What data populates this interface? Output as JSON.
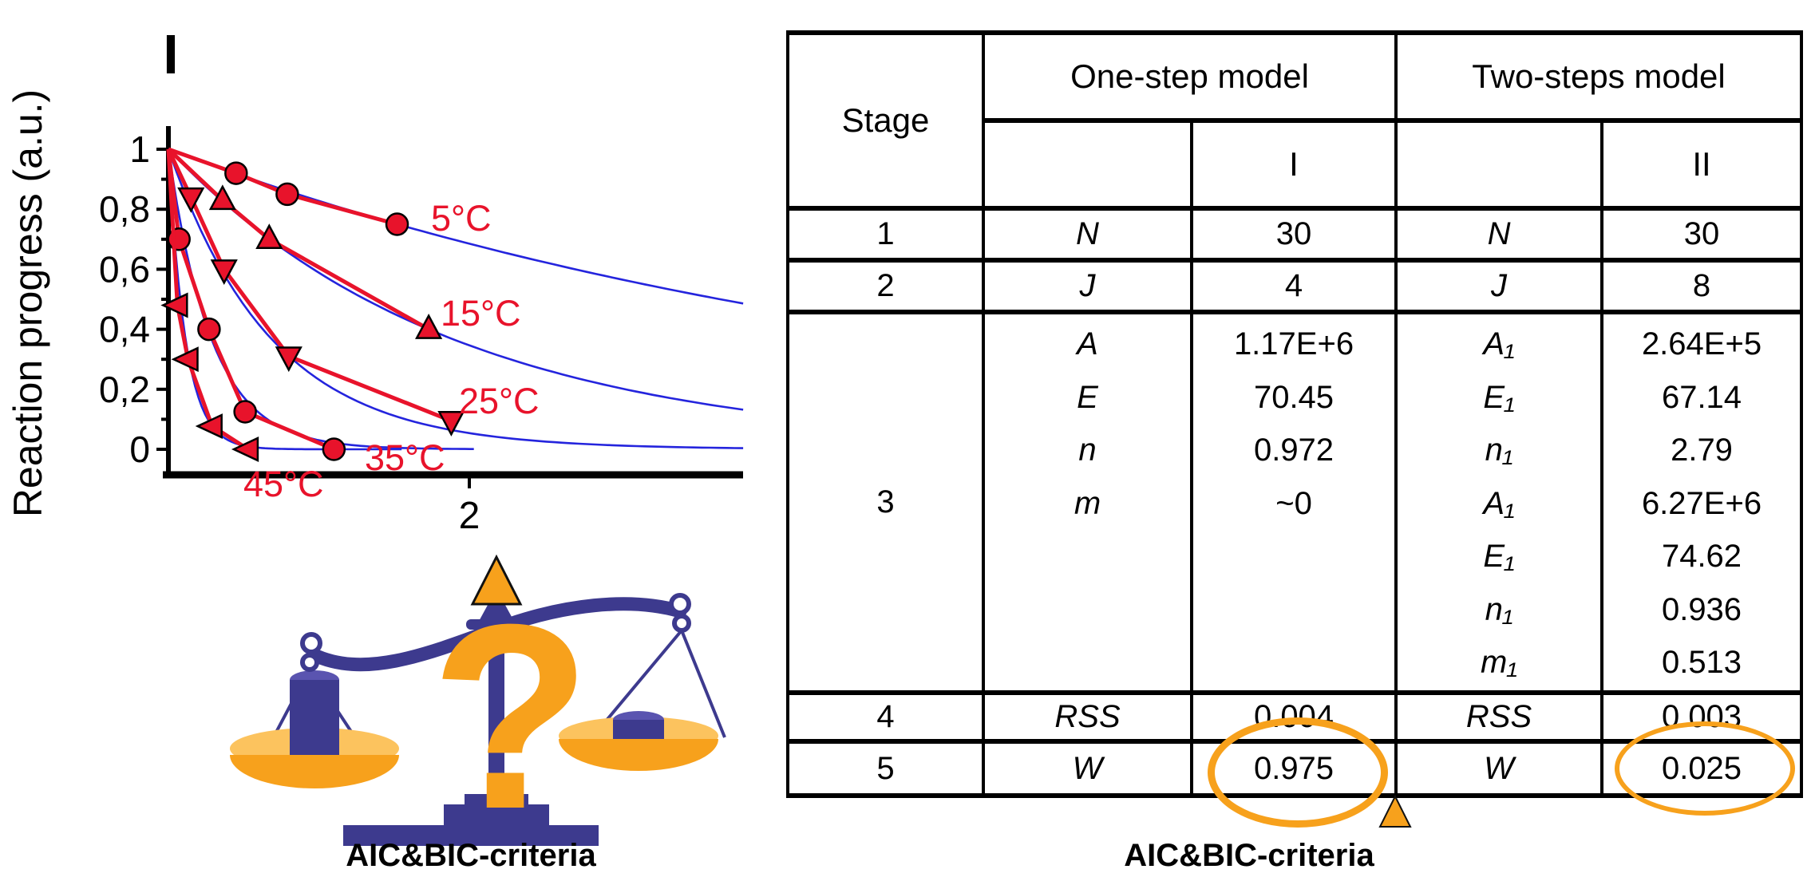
{
  "palette": {
    "red": "#e8132b",
    "blue": "#2424dd",
    "cyan": "#29abe2",
    "green": "#3ab54a",
    "magenta": "#ec008c",
    "gray": "#b3b3b3",
    "orange": "#f7a11c",
    "orange_light": "#fcc35e",
    "navy": "#3d3a8e",
    "navy_light": "#5a54b0",
    "black": "#000000"
  },
  "chart_data": {
    "type": "line",
    "title": "I",
    "ylabel": "Reaction progress (a.u.)",
    "xlabel": "",
    "ylim": [
      0,
      1
    ],
    "xlim": [
      0,
      3.82
    ],
    "grid": false,
    "legend_position": "inline-labels",
    "yticks": [
      1,
      0.8,
      0.6,
      0.4,
      0.2,
      0
    ],
    "ytick_labels": [
      "1",
      "0,8",
      "0,6",
      "0,4",
      "0,2",
      "0"
    ],
    "ytick_minor": [
      0.9,
      0.7,
      0.5,
      0.3,
      0.1
    ],
    "xticks": [
      2
    ],
    "xtick_labels": [
      "2"
    ],
    "series": [
      {
        "name": "5°C",
        "marker": "circle",
        "points": [
          [
            0,
            1
          ],
          [
            0.45,
            0.92
          ],
          [
            0.79,
            0.85
          ],
          [
            1.52,
            0.75
          ]
        ],
        "model": {
          "k": 0.189,
          "x_end": 3.82
        }
      },
      {
        "name": "15°C",
        "marker": "triangle-up",
        "points": [
          [
            0,
            1
          ],
          [
            0.36,
            0.83
          ],
          [
            0.67,
            0.7
          ],
          [
            1.73,
            0.4
          ]
        ],
        "model": {
          "k": 0.53,
          "x_end": 3.82
        }
      },
      {
        "name": "25°C",
        "marker": "triangle-down",
        "points": [
          [
            0,
            1
          ],
          [
            0.15,
            0.84
          ],
          [
            0.37,
            0.6
          ],
          [
            0.8,
            0.31
          ],
          [
            1.88,
            0.095
          ]
        ],
        "model": {
          "k": 1.46,
          "x_end": 3.82
        }
      },
      {
        "name": "35°C",
        "marker": "circle",
        "points": [
          [
            0,
            1
          ],
          [
            0.07,
            0.7
          ],
          [
            0.27,
            0.4
          ],
          [
            0.51,
            0.125
          ],
          [
            1.1,
            0.0
          ]
        ],
        "model": {
          "k": 3.5,
          "x_end": 2.03
        }
      },
      {
        "name": "45°C",
        "marker": "triangle-left",
        "points": [
          [
            0,
            1
          ],
          [
            0.06,
            0.48
          ],
          [
            0.13,
            0.3
          ],
          [
            0.29,
            0.077
          ],
          [
            0.53,
            0.0
          ]
        ],
        "model": {
          "k": 8.8,
          "x_end": 1.55
        }
      }
    ],
    "data_color": "#e8132b",
    "curve_color": "#2424dd"
  },
  "table": {
    "header": {
      "stage": "Stage",
      "one_step": "One-step model",
      "two_steps": "Two-steps model",
      "sub_one": "",
      "sub_I": "I",
      "sub_two": "",
      "sub_II": "II"
    },
    "row1": {
      "stage": "1",
      "param": "N",
      "value": "30",
      "param2": "N",
      "value2": "30"
    },
    "row2": {
      "stage": "2",
      "param": "J",
      "value": "4",
      "param2": "J",
      "value2": "8"
    },
    "row3": {
      "stage": "3",
      "params": [
        "A",
        "E",
        "n",
        "m"
      ],
      "values": [
        "1.17E+6",
        "70.45",
        "0.972",
        "~0"
      ],
      "params2": [
        "A₁",
        "E₁",
        "n₁",
        "A₁",
        "E₁",
        "n₁",
        "m₁"
      ],
      "values2": [
        "2.64E+5",
        "67.14",
        "2.79",
        "6.27E+6",
        "74.62",
        "0.936",
        "0.513"
      ]
    },
    "row4": {
      "stage": "4",
      "param": "RSS",
      "value": "0.004",
      "param2": "RSS",
      "value2": "0.003"
    },
    "row5": {
      "stage": "5",
      "param": "W",
      "value": "0.975",
      "param2": "W",
      "value2": "0.025"
    },
    "caption": "AIC&BIC-criteria"
  },
  "scale": {
    "caption": "AIC&BIC-criteria",
    "question_mark": "?"
  },
  "annotations": {
    "circled_values": [
      "0.975",
      "0.025"
    ],
    "table_pointer": "orange-triangle-up",
    "scale_pointer": "orange-triangle-up"
  }
}
